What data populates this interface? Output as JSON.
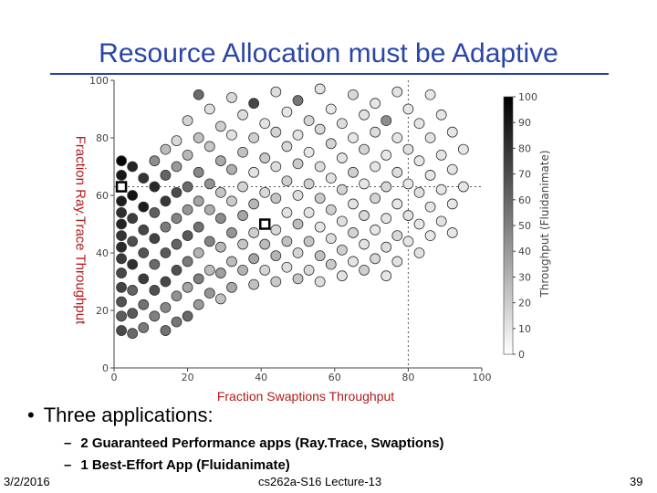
{
  "slide": {
    "title": "Resource Allocation must be Adaptive",
    "bullet": "Three applications:",
    "sub_items": [
      "2 Guaranteed Performance apps (Ray.Trace, Swaptions)",
      "1 Best-Effort App (Fluidanimate)"
    ],
    "footer": {
      "date": "3/2/2016",
      "course": "cs262a-S16 Lecture-13",
      "page": "39"
    }
  },
  "chart_data": {
    "type": "scatter",
    "xlabel": "Fraction Swaptions Throughput",
    "ylabel": "Fraction Ray.Trace Throughput",
    "colorbar_label": "Throughput (Fluidanimate)",
    "xlim": [
      0,
      100
    ],
    "ylim": [
      0,
      100
    ],
    "x_ticks": [
      "0",
      "20",
      "40",
      "60",
      "80",
      "100"
    ],
    "y_ticks": [
      "0",
      "20",
      "40",
      "60",
      "80",
      "100"
    ],
    "colorbar_ticks": [
      "0",
      "10",
      "20",
      "30",
      "40",
      "50",
      "60",
      "70",
      "80",
      "90",
      "100"
    ],
    "colorbar_range": [
      0,
      100
    ],
    "grid": false,
    "reference_lines": {
      "x": [
        80
      ],
      "y": [
        63
      ]
    },
    "highlight_points": [
      {
        "x": 2,
        "y": 63
      },
      {
        "x": 41,
        "y": 50
      }
    ],
    "points": [
      {
        "x": 2,
        "y": 72,
        "c": 98
      },
      {
        "x": 2,
        "y": 67,
        "c": 90
      },
      {
        "x": 2,
        "y": 63,
        "c": 95
      },
      {
        "x": 2,
        "y": 58,
        "c": 88
      },
      {
        "x": 2,
        "y": 54,
        "c": 80
      },
      {
        "x": 2,
        "y": 50,
        "c": 85
      },
      {
        "x": 2,
        "y": 46,
        "c": 78
      },
      {
        "x": 2,
        "y": 42,
        "c": 82
      },
      {
        "x": 2,
        "y": 38,
        "c": 75
      },
      {
        "x": 2,
        "y": 33,
        "c": 70
      },
      {
        "x": 2,
        "y": 28,
        "c": 72
      },
      {
        "x": 2,
        "y": 23,
        "c": 65
      },
      {
        "x": 2,
        "y": 18,
        "c": 60
      },
      {
        "x": 2,
        "y": 13,
        "c": 68
      },
      {
        "x": 5,
        "y": 70,
        "c": 85
      },
      {
        "x": 5,
        "y": 60,
        "c": 92
      },
      {
        "x": 5,
        "y": 52,
        "c": 74
      },
      {
        "x": 5,
        "y": 44,
        "c": 66
      },
      {
        "x": 5,
        "y": 36,
        "c": 80
      },
      {
        "x": 5,
        "y": 27,
        "c": 58
      },
      {
        "x": 5,
        "y": 19,
        "c": 62
      },
      {
        "x": 5,
        "y": 12,
        "c": 55
      },
      {
        "x": 8,
        "y": 66,
        "c": 78
      },
      {
        "x": 8,
        "y": 56,
        "c": 88
      },
      {
        "x": 8,
        "y": 48,
        "c": 70
      },
      {
        "x": 8,
        "y": 40,
        "c": 64
      },
      {
        "x": 8,
        "y": 31,
        "c": 75
      },
      {
        "x": 8,
        "y": 22,
        "c": 52
      },
      {
        "x": 8,
        "y": 14,
        "c": 48
      },
      {
        "x": 11,
        "y": 72,
        "c": 40
      },
      {
        "x": 11,
        "y": 63,
        "c": 82
      },
      {
        "x": 11,
        "y": 54,
        "c": 60
      },
      {
        "x": 11,
        "y": 45,
        "c": 72
      },
      {
        "x": 11,
        "y": 36,
        "c": 55
      },
      {
        "x": 11,
        "y": 27,
        "c": 66
      },
      {
        "x": 11,
        "y": 18,
        "c": 45
      },
      {
        "x": 14,
        "y": 76,
        "c": 20
      },
      {
        "x": 14,
        "y": 67,
        "c": 58
      },
      {
        "x": 14,
        "y": 58,
        "c": 76
      },
      {
        "x": 14,
        "y": 49,
        "c": 48
      },
      {
        "x": 14,
        "y": 40,
        "c": 62
      },
      {
        "x": 14,
        "y": 30,
        "c": 70
      },
      {
        "x": 14,
        "y": 21,
        "c": 42
      },
      {
        "x": 14,
        "y": 13,
        "c": 52
      },
      {
        "x": 17,
        "y": 79,
        "c": 8
      },
      {
        "x": 17,
        "y": 70,
        "c": 35
      },
      {
        "x": 17,
        "y": 61,
        "c": 68
      },
      {
        "x": 17,
        "y": 52,
        "c": 44
      },
      {
        "x": 17,
        "y": 43,
        "c": 58
      },
      {
        "x": 17,
        "y": 34,
        "c": 66
      },
      {
        "x": 17,
        "y": 25,
        "c": 38
      },
      {
        "x": 17,
        "y": 16,
        "c": 50
      },
      {
        "x": 20,
        "y": 86,
        "c": 10
      },
      {
        "x": 20,
        "y": 74,
        "c": 22
      },
      {
        "x": 20,
        "y": 63,
        "c": 55
      },
      {
        "x": 20,
        "y": 55,
        "c": 36
      },
      {
        "x": 20,
        "y": 46,
        "c": 62
      },
      {
        "x": 20,
        "y": 37,
        "c": 48
      },
      {
        "x": 20,
        "y": 28,
        "c": 30
      },
      {
        "x": 20,
        "y": 18,
        "c": 56
      },
      {
        "x": 23,
        "y": 95,
        "c": 55
      },
      {
        "x": 23,
        "y": 80,
        "c": 18
      },
      {
        "x": 23,
        "y": 68,
        "c": 42
      },
      {
        "x": 23,
        "y": 58,
        "c": 30
      },
      {
        "x": 23,
        "y": 49,
        "c": 52
      },
      {
        "x": 23,
        "y": 40,
        "c": 24
      },
      {
        "x": 23,
        "y": 31,
        "c": 46
      },
      {
        "x": 23,
        "y": 22,
        "c": 34
      },
      {
        "x": 26,
        "y": 90,
        "c": 5
      },
      {
        "x": 26,
        "y": 77,
        "c": 15
      },
      {
        "x": 26,
        "y": 64,
        "c": 38
      },
      {
        "x": 26,
        "y": 55,
        "c": 26
      },
      {
        "x": 26,
        "y": 44,
        "c": 44
      },
      {
        "x": 26,
        "y": 34,
        "c": 20
      },
      {
        "x": 26,
        "y": 26,
        "c": 36
      },
      {
        "x": 29,
        "y": 84,
        "c": 12
      },
      {
        "x": 29,
        "y": 72,
        "c": 28
      },
      {
        "x": 29,
        "y": 61,
        "c": 16
      },
      {
        "x": 29,
        "y": 52,
        "c": 40
      },
      {
        "x": 29,
        "y": 42,
        "c": 22
      },
      {
        "x": 29,
        "y": 33,
        "c": 32
      },
      {
        "x": 29,
        "y": 24,
        "c": 18
      },
      {
        "x": 32,
        "y": 94,
        "c": 8
      },
      {
        "x": 32,
        "y": 81,
        "c": 4
      },
      {
        "x": 32,
        "y": 69,
        "c": 26
      },
      {
        "x": 32,
        "y": 58,
        "c": 14
      },
      {
        "x": 32,
        "y": 47,
        "c": 36
      },
      {
        "x": 32,
        "y": 37,
        "c": 20
      },
      {
        "x": 32,
        "y": 28,
        "c": 28
      },
      {
        "x": 35,
        "y": 88,
        "c": 6
      },
      {
        "x": 35,
        "y": 75,
        "c": 18
      },
      {
        "x": 35,
        "y": 63,
        "c": 10
      },
      {
        "x": 35,
        "y": 53,
        "c": 30
      },
      {
        "x": 35,
        "y": 43,
        "c": 16
      },
      {
        "x": 35,
        "y": 34,
        "c": 24
      },
      {
        "x": 38,
        "y": 92,
        "c": 70
      },
      {
        "x": 38,
        "y": 80,
        "c": 12
      },
      {
        "x": 38,
        "y": 68,
        "c": 4
      },
      {
        "x": 38,
        "y": 57,
        "c": 22
      },
      {
        "x": 38,
        "y": 47,
        "c": 12
      },
      {
        "x": 38,
        "y": 38,
        "c": 30
      },
      {
        "x": 38,
        "y": 29,
        "c": 18
      },
      {
        "x": 41,
        "y": 85,
        "c": 3
      },
      {
        "x": 41,
        "y": 73,
        "c": 14
      },
      {
        "x": 41,
        "y": 61,
        "c": 8
      },
      {
        "x": 41,
        "y": 43,
        "c": 20
      },
      {
        "x": 41,
        "y": 34,
        "c": 10
      },
      {
        "x": 44,
        "y": 96,
        "c": 6
      },
      {
        "x": 44,
        "y": 82,
        "c": 10
      },
      {
        "x": 44,
        "y": 70,
        "c": 6
      },
      {
        "x": 44,
        "y": 59,
        "c": 16
      },
      {
        "x": 44,
        "y": 48,
        "c": 8
      },
      {
        "x": 44,
        "y": 39,
        "c": 24
      },
      {
        "x": 44,
        "y": 30,
        "c": 14
      },
      {
        "x": 47,
        "y": 89,
        "c": 2
      },
      {
        "x": 47,
        "y": 77,
        "c": 8
      },
      {
        "x": 47,
        "y": 65,
        "c": 12
      },
      {
        "x": 47,
        "y": 54,
        "c": 4
      },
      {
        "x": 47,
        "y": 44,
        "c": 18
      },
      {
        "x": 47,
        "y": 35,
        "c": 6
      },
      {
        "x": 50,
        "y": 93,
        "c": 50
      },
      {
        "x": 50,
        "y": 81,
        "c": 4
      },
      {
        "x": 50,
        "y": 71,
        "c": 14
      },
      {
        "x": 50,
        "y": 60,
        "c": 6
      },
      {
        "x": 50,
        "y": 50,
        "c": 20
      },
      {
        "x": 50,
        "y": 40,
        "c": 10
      },
      {
        "x": 50,
        "y": 31,
        "c": 16
      },
      {
        "x": 53,
        "y": 86,
        "c": 10
      },
      {
        "x": 53,
        "y": 75,
        "c": 2
      },
      {
        "x": 53,
        "y": 64,
        "c": 12
      },
      {
        "x": 53,
        "y": 54,
        "c": 4
      },
      {
        "x": 53,
        "y": 44,
        "c": 16
      },
      {
        "x": 53,
        "y": 34,
        "c": 8
      },
      {
        "x": 56,
        "y": 97,
        "c": 4
      },
      {
        "x": 56,
        "y": 83,
        "c": 8
      },
      {
        "x": 56,
        "y": 70,
        "c": 6
      },
      {
        "x": 56,
        "y": 59,
        "c": 14
      },
      {
        "x": 56,
        "y": 49,
        "c": 3
      },
      {
        "x": 56,
        "y": 39,
        "c": 18
      },
      {
        "x": 56,
        "y": 30,
        "c": 6
      },
      {
        "x": 59,
        "y": 90,
        "c": 2
      },
      {
        "x": 59,
        "y": 78,
        "c": 10
      },
      {
        "x": 59,
        "y": 66,
        "c": 4
      },
      {
        "x": 59,
        "y": 55,
        "c": 12
      },
      {
        "x": 59,
        "y": 45,
        "c": 6
      },
      {
        "x": 59,
        "y": 36,
        "c": 14
      },
      {
        "x": 62,
        "y": 85,
        "c": 6
      },
      {
        "x": 62,
        "y": 73,
        "c": 3
      },
      {
        "x": 62,
        "y": 62,
        "c": 10
      },
      {
        "x": 62,
        "y": 51,
        "c": 5
      },
      {
        "x": 62,
        "y": 41,
        "c": 12
      },
      {
        "x": 62,
        "y": 32,
        "c": 4
      },
      {
        "x": 65,
        "y": 95,
        "c": 8
      },
      {
        "x": 65,
        "y": 80,
        "c": 2
      },
      {
        "x": 65,
        "y": 68,
        "c": 12
      },
      {
        "x": 65,
        "y": 57,
        "c": 4
      },
      {
        "x": 65,
        "y": 47,
        "c": 10
      },
      {
        "x": 65,
        "y": 37,
        "c": 3
      },
      {
        "x": 68,
        "y": 88,
        "c": 4
      },
      {
        "x": 68,
        "y": 76,
        "c": 10
      },
      {
        "x": 68,
        "y": 64,
        "c": 2
      },
      {
        "x": 68,
        "y": 53,
        "c": 8
      },
      {
        "x": 68,
        "y": 43,
        "c": 4
      },
      {
        "x": 68,
        "y": 34,
        "c": 12
      },
      {
        "x": 71,
        "y": 92,
        "c": 2
      },
      {
        "x": 71,
        "y": 82,
        "c": 6
      },
      {
        "x": 71,
        "y": 70,
        "c": 3
      },
      {
        "x": 71,
        "y": 59,
        "c": 10
      },
      {
        "x": 71,
        "y": 48,
        "c": 2
      },
      {
        "x": 71,
        "y": 38,
        "c": 8
      },
      {
        "x": 74,
        "y": 86,
        "c": 40
      },
      {
        "x": 74,
        "y": 74,
        "c": 2
      },
      {
        "x": 74,
        "y": 63,
        "c": 8
      },
      {
        "x": 74,
        "y": 52,
        "c": 3
      },
      {
        "x": 74,
        "y": 42,
        "c": 6
      },
      {
        "x": 74,
        "y": 32,
        "c": 2
      },
      {
        "x": 77,
        "y": 96,
        "c": 4
      },
      {
        "x": 77,
        "y": 80,
        "c": 3
      },
      {
        "x": 77,
        "y": 68,
        "c": 6
      },
      {
        "x": 77,
        "y": 57,
        "c": 2
      },
      {
        "x": 77,
        "y": 46,
        "c": 8
      },
      {
        "x": 77,
        "y": 37,
        "c": 4
      },
      {
        "x": 80,
        "y": 90,
        "c": 2
      },
      {
        "x": 80,
        "y": 76,
        "c": 5
      },
      {
        "x": 80,
        "y": 64,
        "c": 2
      },
      {
        "x": 80,
        "y": 53,
        "c": 4
      },
      {
        "x": 80,
        "y": 44,
        "c": 2
      },
      {
        "x": 83,
        "y": 85,
        "c": 3
      },
      {
        "x": 83,
        "y": 72,
        "c": 2
      },
      {
        "x": 83,
        "y": 61,
        "c": 5
      },
      {
        "x": 83,
        "y": 50,
        "c": 2
      },
      {
        "x": 83,
        "y": 40,
        "c": 4
      },
      {
        "x": 86,
        "y": 95,
        "c": 2
      },
      {
        "x": 86,
        "y": 80,
        "c": 4
      },
      {
        "x": 86,
        "y": 67,
        "c": 2
      },
      {
        "x": 86,
        "y": 56,
        "c": 3
      },
      {
        "x": 86,
        "y": 46,
        "c": 2
      },
      {
        "x": 89,
        "y": 88,
        "c": 2
      },
      {
        "x": 89,
        "y": 74,
        "c": 3
      },
      {
        "x": 89,
        "y": 62,
        "c": 2
      },
      {
        "x": 89,
        "y": 51,
        "c": 4
      },
      {
        "x": 92,
        "y": 82,
        "c": 2
      },
      {
        "x": 92,
        "y": 69,
        "c": 3
      },
      {
        "x": 92,
        "y": 57,
        "c": 2
      },
      {
        "x": 92,
        "y": 47,
        "c": 2
      },
      {
        "x": 95,
        "y": 76,
        "c": 2
      },
      {
        "x": 95,
        "y": 63,
        "c": 2
      }
    ]
  }
}
